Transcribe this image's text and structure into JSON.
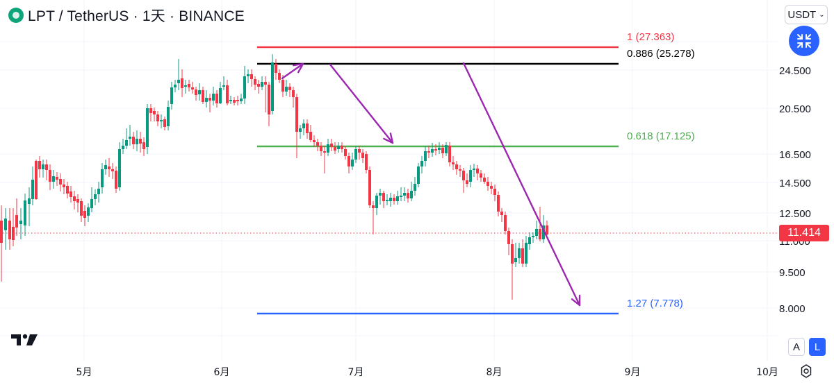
{
  "header": {
    "symbol_title": "LPT / TetherUS · 1天 · BINANCE",
    "currency_button": "USDT",
    "logo_icon": "livepeer-logo-icon",
    "collapse_icon": "collapse-arrows-icon"
  },
  "chart_data": {
    "type": "candlestick",
    "x_axis_labels": [
      "5月",
      "6月",
      "7月",
      "8月",
      "9月",
      "10月"
    ],
    "y_axis_labels": [
      "24.500",
      "20.500",
      "16.500",
      "14.500",
      "12.500",
      "11.000",
      "9.500",
      "8.000"
    ],
    "last_price": "11.414",
    "fib_levels": [
      {
        "label": "1 (27.363)",
        "color": "#f23645"
      },
      {
        "label": "0.886 (25.278)",
        "color": "#000000"
      },
      {
        "label": "0.618 (17.125)",
        "color": "#4caf50"
      },
      {
        "label": "1.27 (7.778)",
        "color": "#2962ff"
      }
    ],
    "up_color": "#089981",
    "down_color": "#f23645",
    "arrow_color": "#9c27b0"
  },
  "footer": {
    "auto_scale_button": "A",
    "log_scale_button": "L",
    "tradingview_logo": "tradingview-logo-icon",
    "settings_icon": "settings-gear-icon"
  }
}
